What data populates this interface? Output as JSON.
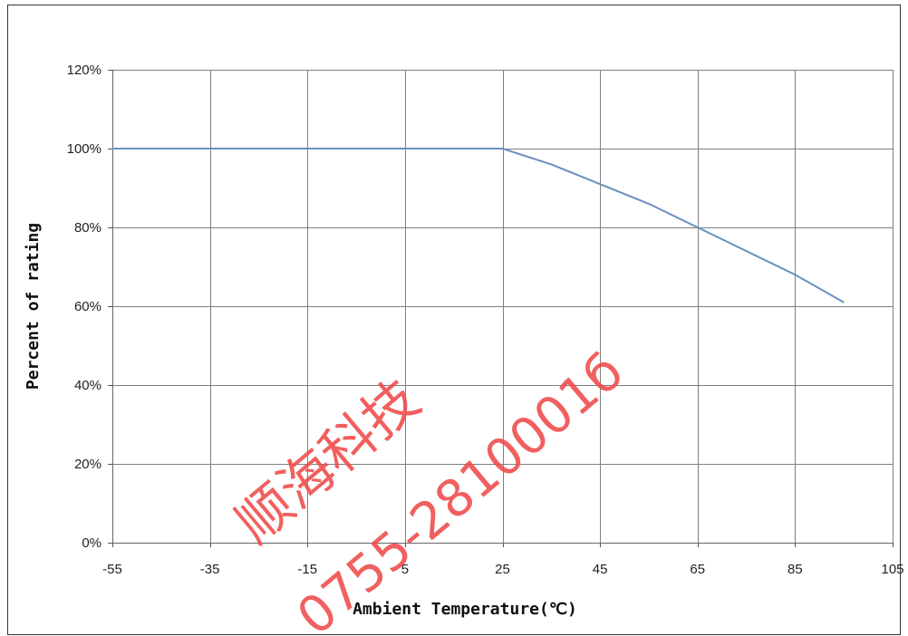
{
  "chart_data": {
    "type": "line",
    "title": "",
    "xlabel": "Ambient Temperature(℃)",
    "ylabel": "Percent of rating",
    "xlim": [
      -55,
      105
    ],
    "ylim": [
      0,
      120
    ],
    "x_ticks": [
      -55,
      -35,
      -15,
      5,
      25,
      45,
      65,
      85,
      105
    ],
    "y_ticks": [
      0,
      20,
      40,
      60,
      80,
      100,
      120
    ],
    "y_tick_suffix": "%",
    "grid": true,
    "legend": "none",
    "series": [
      {
        "color": "#6a8fbf",
        "points": [
          {
            "x": -55,
            "y": 100
          },
          {
            "x": 25,
            "y": 100
          },
          {
            "x": 35,
            "y": 96
          },
          {
            "x": 45,
            "y": 91
          },
          {
            "x": 55,
            "y": 86
          },
          {
            "x": 65,
            "y": 80
          },
          {
            "x": 75,
            "y": 74
          },
          {
            "x": 85,
            "y": 68
          },
          {
            "x": 95,
            "y": 61
          }
        ]
      }
    ]
  },
  "watermark": {
    "company": "顺海科技",
    "phone": "0755-2810001б",
    "color": "#f04a4a"
  }
}
